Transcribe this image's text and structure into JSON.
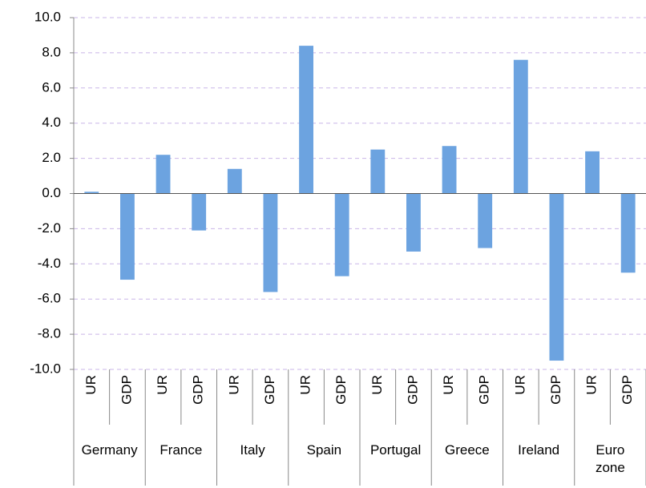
{
  "chart_data": {
    "type": "bar",
    "categories": [
      "UR",
      "GDP",
      "UR",
      "GDP",
      "UR",
      "GDP",
      "UR",
      "GDP",
      "UR",
      "GDP",
      "UR",
      "GDP",
      "UR",
      "GDP",
      "UR",
      "GDP"
    ],
    "groups": [
      "Germany",
      "France",
      "Italy",
      "Spain",
      "Portugal",
      "Greece",
      "Ireland",
      "Euro zone"
    ],
    "values": [
      0.1,
      -4.9,
      2.2,
      -2.1,
      1.4,
      -5.6,
      8.4,
      -4.7,
      2.5,
      -3.3,
      2.7,
      -3.1,
      7.6,
      -9.5,
      2.4,
      -4.5
    ],
    "color": "#6ca3e0",
    "ylim": [
      -10,
      10
    ],
    "yticks": [
      {
        "value": -10,
        "label": "-10.0"
      },
      {
        "value": -8,
        "label": "-8.0"
      },
      {
        "value": -6,
        "label": "-6.0"
      },
      {
        "value": -4,
        "label": "-4.0"
      },
      {
        "value": -2,
        "label": "-2.0"
      },
      {
        "value": 0,
        "label": "0.0"
      },
      {
        "value": 2,
        "label": "2.0"
      },
      {
        "value": 4,
        "label": "4.0"
      },
      {
        "value": 6,
        "label": "6.0"
      },
      {
        "value": 8,
        "label": "8.0"
      },
      {
        "value": 10,
        "label": "10.0"
      }
    ],
    "grid": true
  }
}
